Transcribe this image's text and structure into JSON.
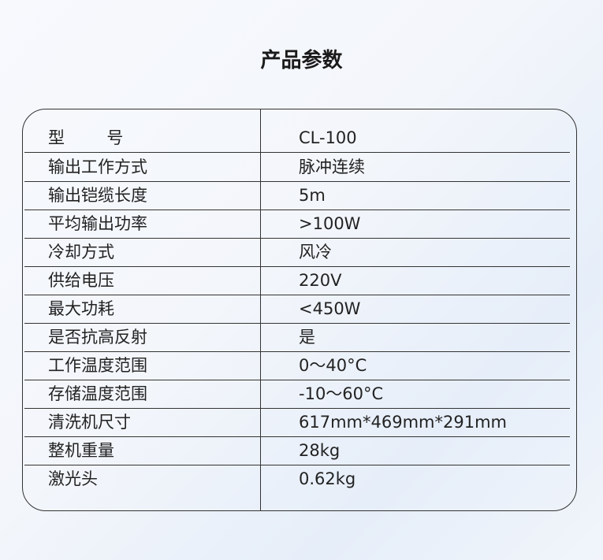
{
  "title": "产品参数",
  "rows": [
    {
      "label": "型        号",
      "value": "CL-100"
    },
    {
      "label": "输出工作方式",
      "value": "脉冲连续"
    },
    {
      "label": "输出铠缆长度",
      "value": "5m"
    },
    {
      "label": "平均输出功率",
      "value": ">100W"
    },
    {
      "label": "冷却方式",
      "value": "风冷"
    },
    {
      "label": "供给电压",
      "value": "220V"
    },
    {
      "label": "最大功耗",
      "value": "<450W"
    },
    {
      "label": "是否抗高反射",
      "value": "是"
    },
    {
      "label": "工作温度范围",
      "value": "0～40°C"
    },
    {
      "label": "存储温度范围",
      "value": "-10～60°C"
    },
    {
      "label": "清洗机尺寸",
      "value": "617mm*469mm*291mm"
    },
    {
      "label": "整机重量",
      "value": "28kg"
    },
    {
      "label": "激光头",
      "value": "0.62kg"
    }
  ]
}
